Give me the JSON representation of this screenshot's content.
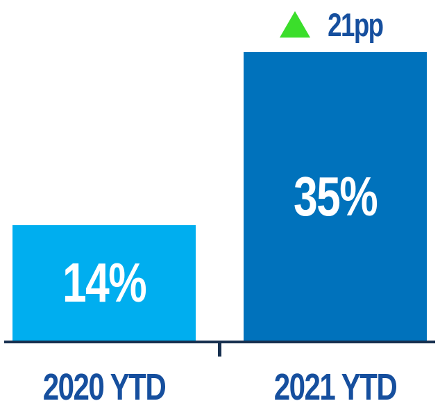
{
  "chart_data": {
    "type": "bar",
    "title": "",
    "categories": [
      "2020 YTD",
      "2021 YTD"
    ],
    "values": [
      14,
      35
    ],
    "value_labels": [
      "14%",
      "35%"
    ],
    "series_colors": [
      "#00AEEF",
      "#0072BC"
    ],
    "annotation": {
      "icon": "triangle-up",
      "text": "21pp",
      "target": "2021 YTD"
    },
    "layout": {
      "grid": false,
      "y_axis": false,
      "x_baseline": true,
      "center_tick": true,
      "value_labels_inside_bars": true,
      "legend": "none"
    }
  },
  "colors": {
    "background": "#FFFFFF",
    "bar_2020": "#00AEEF",
    "bar_2021": "#0072BC",
    "value_label_text": "#FFFFFF",
    "category_label_text": "#164F9E",
    "annotation_text": "#164F9E",
    "annotation_arrow": "#3BDE2B",
    "axis_line": "#17304F"
  }
}
